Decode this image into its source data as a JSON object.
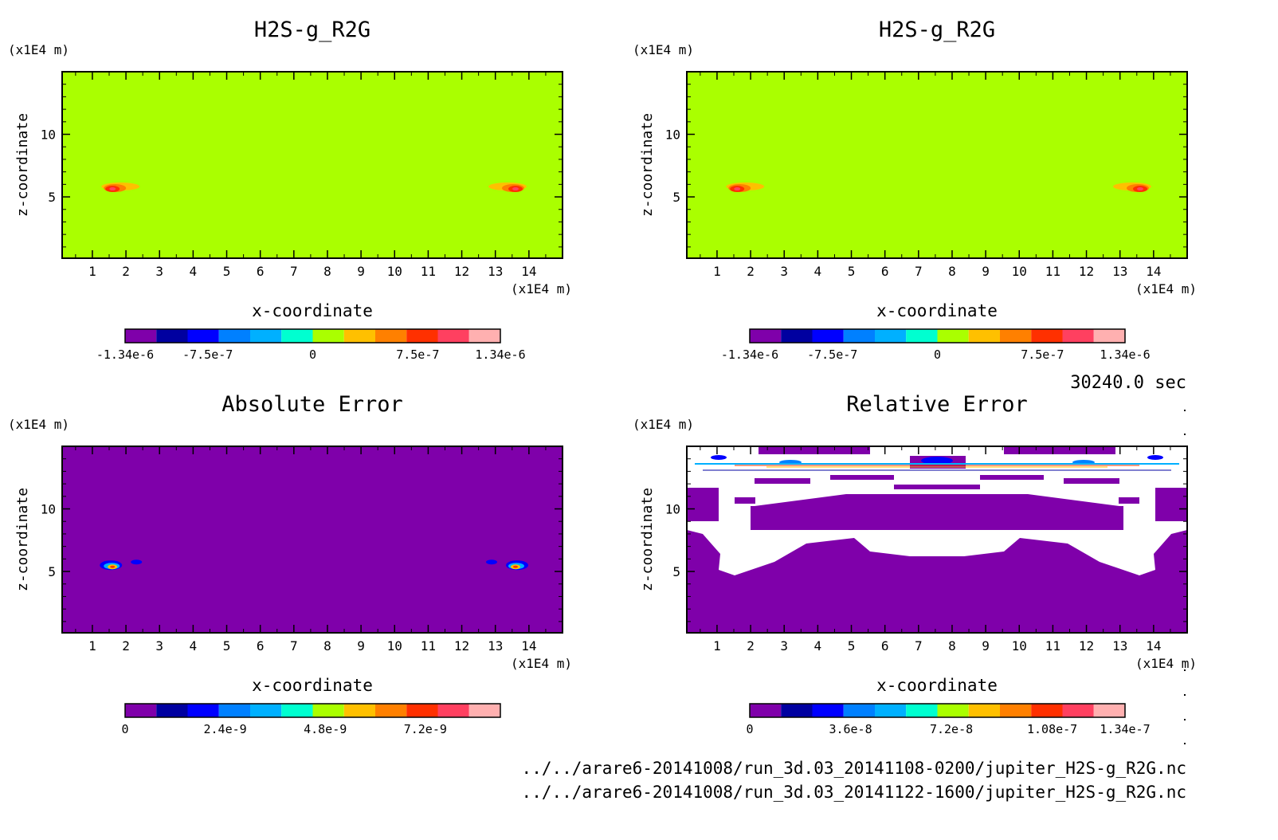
{
  "timestamp": "30240.0 sec",
  "footer": {
    "line1": "../../arare6-20141008/run_3d.03_20141108-0200/jupiter_H2S-g_R2G.nc",
    "line2": "../../arare6-20141008/run_3d.03_20141122-1600/jupiter_H2S-g_R2G.nc"
  },
  "colors": {
    "green_field": "#aaff00",
    "purple_field": "#7f00aa",
    "palette": [
      "#7f00aa",
      "#0000a0",
      "#0000ff",
      "#0080ff",
      "#00b0ff",
      "#00ffd0",
      "#aaff00",
      "#ffc000",
      "#ff8000",
      "#ff3000",
      "#ff4060",
      "#ffb0b0"
    ]
  },
  "chart_data": [
    {
      "type": "heatmap",
      "title": "H2S-g_R2G",
      "xlabel": "x-coordinate",
      "ylabel": "z-coordinate",
      "x_unit": "(x1E4 m)",
      "y_unit": "(x1E4 m)",
      "x_ticks": [
        "1",
        "2",
        "3",
        "4",
        "5",
        "6",
        "7",
        "8",
        "9",
        "10",
        "11",
        "12",
        "13",
        "14"
      ],
      "y_ticks": [
        "5",
        "10"
      ],
      "xlim": [
        0.1,
        15.0
      ],
      "ylim": [
        0.1,
        15.0
      ],
      "background": "green",
      "features": [
        {
          "x": 1.6,
          "z": 5.7,
          "kind": "positive-blob"
        },
        {
          "x": 13.6,
          "z": 5.7,
          "kind": "positive-blob"
        }
      ],
      "colorbar": {
        "labels": [
          "-1.34e-6",
          "-7.5e-7",
          "0",
          "7.5e-7",
          "1.34e-6"
        ],
        "range": [
          -1.34e-06,
          1.34e-06
        ]
      }
    },
    {
      "type": "heatmap",
      "title": "H2S-g_R2G",
      "xlabel": "x-coordinate",
      "ylabel": "z-coordinate",
      "x_unit": "(x1E4 m)",
      "y_unit": "(x1E4 m)",
      "x_ticks": [
        "1",
        "2",
        "3",
        "4",
        "5",
        "6",
        "7",
        "8",
        "9",
        "10",
        "11",
        "12",
        "13",
        "14"
      ],
      "y_ticks": [
        "5",
        "10"
      ],
      "xlim": [
        0.1,
        15.0
      ],
      "ylim": [
        0.1,
        15.0
      ],
      "background": "green",
      "features": [
        {
          "x": 1.6,
          "z": 5.7,
          "kind": "positive-blob"
        },
        {
          "x": 13.6,
          "z": 5.7,
          "kind": "positive-blob"
        }
      ],
      "colorbar": {
        "labels": [
          "-1.34e-6",
          "-7.5e-7",
          "0",
          "7.5e-7",
          "1.34e-6"
        ],
        "range": [
          -1.34e-06,
          1.34e-06
        ]
      }
    },
    {
      "type": "heatmap",
      "title": "Absolute Error",
      "xlabel": "x-coordinate",
      "ylabel": "z-coordinate",
      "x_unit": "(x1E4 m)",
      "y_unit": "(x1E4 m)",
      "x_ticks": [
        "1",
        "2",
        "3",
        "4",
        "5",
        "6",
        "7",
        "8",
        "9",
        "10",
        "11",
        "12",
        "13",
        "14"
      ],
      "y_ticks": [
        "5",
        "10"
      ],
      "xlim": [
        0.1,
        15.0
      ],
      "ylim": [
        0.1,
        15.0
      ],
      "background": "purple",
      "features": [
        {
          "x": 1.6,
          "z": 5.5,
          "kind": "error-blob"
        },
        {
          "x": 13.6,
          "z": 5.5,
          "kind": "error-blob"
        }
      ],
      "colorbar": {
        "labels": [
          "0",
          "2.4e-9",
          "4.8e-9",
          "7.2e-9"
        ],
        "range": [
          0,
          9e-09
        ]
      }
    },
    {
      "type": "heatmap",
      "title": "Relative Error",
      "xlabel": "x-coordinate",
      "ylabel": "z-coordinate",
      "x_unit": "(x1E4 m)",
      "y_unit": "(x1E4 m)",
      "x_ticks": [
        "1",
        "2",
        "3",
        "4",
        "5",
        "6",
        "7",
        "8",
        "9",
        "10",
        "11",
        "12",
        "13",
        "14"
      ],
      "y_ticks": [
        "5",
        "10"
      ],
      "xlim": [
        0.1,
        15.0
      ],
      "ylim": [
        0.1,
        15.0
      ],
      "background": "purple",
      "features": [
        {
          "kind": "undefined-region-upper"
        }
      ],
      "colorbar": {
        "labels": [
          "0",
          "3.6e-8",
          "7.2e-8",
          "1.08e-7",
          "1.34e-7"
        ],
        "range": [
          0,
          1.34e-07
        ]
      }
    }
  ]
}
